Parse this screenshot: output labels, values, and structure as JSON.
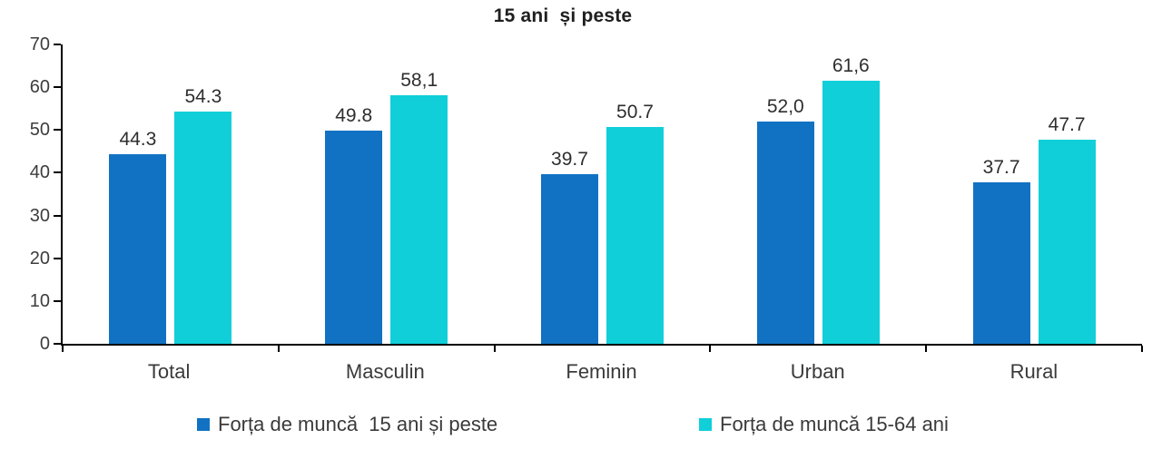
{
  "chart_data": {
    "type": "bar",
    "title": "15 ani  și peste",
    "categories": [
      "Total",
      "Masculin",
      "Feminin",
      "Urban",
      "Rural"
    ],
    "series": [
      {
        "name": "Forța de muncă  15 ani și peste",
        "color": "#1172C3",
        "values": [
          44.3,
          49.8,
          39.7,
          52.0,
          37.7
        ],
        "labels": [
          "44.3",
          "49.8",
          "39.7",
          "52,0",
          "37.7"
        ]
      },
      {
        "name": "Forța de muncă 15-64 ani",
        "color": "#10CFD9",
        "values": [
          54.3,
          58.1,
          50.7,
          61.6,
          47.7
        ],
        "labels": [
          "54.3",
          "58,1",
          "50.7",
          "61,6",
          "47.7"
        ]
      }
    ],
    "xlabel": "",
    "ylabel": "",
    "ylim": [
      0,
      70
    ],
    "yticks": [
      0,
      10,
      20,
      30,
      40,
      50,
      60,
      70
    ],
    "grid": false,
    "axis_color": "#000000",
    "legend_position": "bottom"
  }
}
